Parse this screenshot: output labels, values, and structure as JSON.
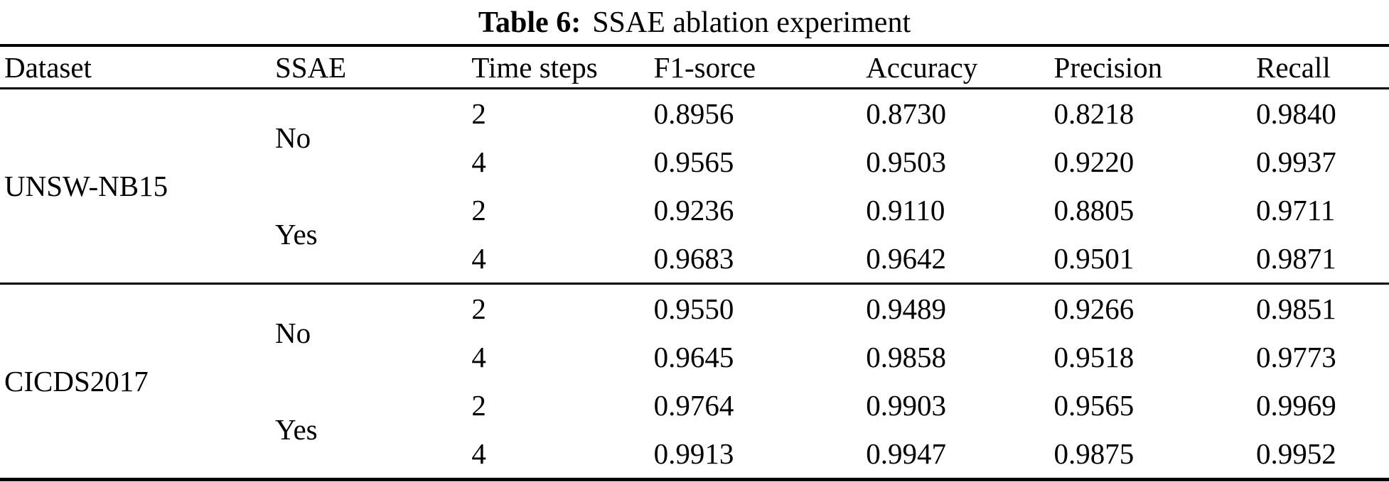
{
  "caption": {
    "label": "Table 6:",
    "text": "SSAE ablation experiment"
  },
  "table": {
    "columns": [
      "Dataset",
      "SSAE",
      "Time steps",
      "F1-sorce",
      "Accuracy",
      "Precision",
      "Recall"
    ],
    "groups": [
      {
        "dataset": "UNSW-NB15",
        "subgroups": [
          {
            "ssae": "No",
            "rows": [
              {
                "time_steps": "2",
                "f1": "0.8956",
                "accuracy": "0.8730",
                "precision": "0.8218",
                "recall": "0.9840"
              },
              {
                "time_steps": "4",
                "f1": "0.9565",
                "accuracy": "0.9503",
                "precision": "0.9220",
                "recall": "0.9937"
              }
            ]
          },
          {
            "ssae": "Yes",
            "rows": [
              {
                "time_steps": "2",
                "f1": "0.9236",
                "accuracy": "0.9110",
                "precision": "0.8805",
                "recall": "0.9711"
              },
              {
                "time_steps": "4",
                "f1": "0.9683",
                "accuracy": "0.9642",
                "precision": "0.9501",
                "recall": "0.9871"
              }
            ]
          }
        ]
      },
      {
        "dataset": "CICDS2017",
        "subgroups": [
          {
            "ssae": "No",
            "rows": [
              {
                "time_steps": "2",
                "f1": "0.9550",
                "accuracy": "0.9489",
                "precision": "0.9266",
                "recall": "0.9851"
              },
              {
                "time_steps": "4",
                "f1": "0.9645",
                "accuracy": "0.9858",
                "precision": "0.9518",
                "recall": "0.9773"
              }
            ]
          },
          {
            "ssae": "Yes",
            "rows": [
              {
                "time_steps": "2",
                "f1": "0.9764",
                "accuracy": "0.9903",
                "precision": "0.9565",
                "recall": "0.9969"
              },
              {
                "time_steps": "4",
                "f1": "0.9913",
                "accuracy": "0.9947",
                "precision": "0.9875",
                "recall": "0.9952"
              }
            ]
          }
        ]
      }
    ]
  }
}
